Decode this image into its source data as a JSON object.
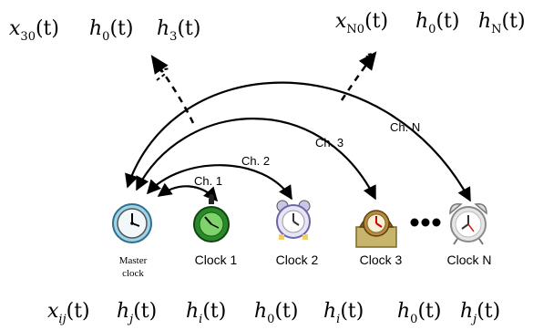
{
  "top_left": {
    "x30": {
      "base": "x",
      "sub": "30",
      "arg": "(t)"
    },
    "h0": {
      "base": "h",
      "sub": "0",
      "arg": "(t)"
    },
    "h3": {
      "base": "h",
      "sub": "3",
      "arg": "(t)"
    }
  },
  "top_right": {
    "xN0": {
      "base": "x",
      "sub": "N0",
      "arg": "(t)"
    },
    "h0": {
      "base": "h",
      "sub": "0",
      "arg": "(t)"
    },
    "hN": {
      "base": "h",
      "sub": "N",
      "arg": "(t)"
    }
  },
  "bottom": [
    {
      "base": "x",
      "sub": "ij",
      "arg": "(t)"
    },
    {
      "base": "h",
      "sub": "j",
      "arg": "(t)"
    },
    {
      "base": "h",
      "sub": "i",
      "arg": "(t)"
    },
    {
      "base": "h",
      "sub": "0",
      "arg": "(t)"
    },
    {
      "base": "h",
      "sub": "i",
      "arg": "(t)"
    },
    {
      "base": "h",
      "sub": "0",
      "arg": "(t)"
    },
    {
      "base": "h",
      "sub": "j",
      "arg": "(t)"
    }
  ],
  "channels": {
    "ch1": "Ch. 1",
    "ch2": "Ch. 2",
    "ch3": "Ch. 3",
    "chN": "Ch. N"
  },
  "clocks": {
    "master_line1": "Master",
    "master_line2": "clock",
    "clock1": "Clock 1",
    "clock2": "Clock 2",
    "clock3": "Clock 3",
    "clockN": "Clock N"
  },
  "icons": {
    "master": "master-clock-icon",
    "clock1": "stopwatch-icon",
    "clock2": "alarm-clock-icon",
    "clock3": "mantel-clock-icon",
    "clockN": "bell-alarm-clock-icon"
  }
}
